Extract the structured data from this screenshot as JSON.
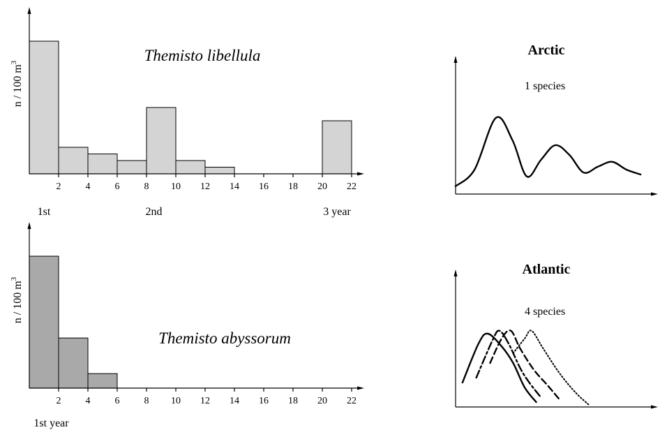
{
  "chart_data": [
    {
      "type": "bar",
      "title": "Themisto libellula",
      "ylabel": "n / 100 m",
      "ylabel_sup": "3",
      "x_ticks": [
        "2",
        "4",
        "6",
        "8",
        "10",
        "12",
        "14",
        "16",
        "18",
        "20",
        "22"
      ],
      "bins": [
        {
          "start": 0,
          "end": 2,
          "value": 100
        },
        {
          "start": 2,
          "end": 4,
          "value": 20
        },
        {
          "start": 4,
          "end": 6,
          "value": 15
        },
        {
          "start": 6,
          "end": 8,
          "value": 10
        },
        {
          "start": 8,
          "end": 10,
          "value": 50
        },
        {
          "start": 10,
          "end": 12,
          "value": 10
        },
        {
          "start": 12,
          "end": 14,
          "value": 5
        },
        {
          "start": 20,
          "end": 22,
          "value": 40
        }
      ],
      "xlim": [
        0,
        23
      ],
      "ylim": [
        0,
        125
      ],
      "age_labels": [
        {
          "text": "1st",
          "x": 1
        },
        {
          "text": "2nd",
          "x": 8.5
        },
        {
          "text": "3 year",
          "x": 21
        }
      ],
      "bar_color": "#d4d4d4"
    },
    {
      "type": "bar",
      "title": "Themisto abyssorum",
      "ylabel": "n / 100 m",
      "ylabel_sup": "3",
      "x_ticks": [
        "2",
        "4",
        "6",
        "8",
        "10",
        "12",
        "14",
        "16",
        "18",
        "20",
        "22"
      ],
      "bins": [
        {
          "start": 0,
          "end": 2,
          "value": 100
        },
        {
          "start": 2,
          "end": 4,
          "value": 38
        },
        {
          "start": 4,
          "end": 6,
          "value": 11
        }
      ],
      "xlim": [
        0,
        23
      ],
      "ylim": [
        0,
        125
      ],
      "age_labels": [
        {
          "text": "1st year",
          "x": 1.5
        }
      ],
      "bar_color": "#a9a9a9"
    },
    {
      "type": "line",
      "title": "Arctic",
      "annotation": "1 species",
      "series": [
        {
          "style": "solid",
          "points": [
            [
              0,
              8
            ],
            [
              8,
              25
            ],
            [
              17,
              78
            ],
            [
              24,
              55
            ],
            [
              30,
              18
            ],
            [
              36,
              35
            ],
            [
              42,
              50
            ],
            [
              48,
              40
            ],
            [
              54,
              22
            ],
            [
              60,
              28
            ],
            [
              66,
              33
            ],
            [
              72,
              25
            ],
            [
              78,
              20
            ]
          ]
        }
      ],
      "xlim": [
        0,
        84
      ],
      "ylim": [
        0,
        120
      ]
    },
    {
      "type": "line",
      "title": "Atlantic",
      "annotation": "4 species",
      "series": [
        {
          "style": "solid",
          "points": [
            [
              3,
              25
            ],
            [
              10,
              65
            ],
            [
              14,
              75
            ],
            [
              20,
              62
            ],
            [
              25,
              45
            ],
            [
              30,
              20
            ],
            [
              35,
              5
            ]
          ]
        },
        {
          "style": "dashdot",
          "points": [
            [
              9,
              30
            ],
            [
              16,
              68
            ],
            [
              19,
              78
            ],
            [
              23,
              65
            ],
            [
              28,
              40
            ],
            [
              32,
              25
            ],
            [
              37,
              10
            ]
          ]
        },
        {
          "style": "dashed",
          "points": [
            [
              15,
              45
            ],
            [
              20,
              70
            ],
            [
              24,
              78
            ],
            [
              28,
              60
            ],
            [
              34,
              38
            ],
            [
              40,
              22
            ],
            [
              45,
              8
            ]
          ]
        },
        {
          "style": "dotted",
          "points": [
            [
              25,
              55
            ],
            [
              30,
              70
            ],
            [
              33,
              78
            ],
            [
              38,
              60
            ],
            [
              45,
              35
            ],
            [
              52,
              15
            ],
            [
              58,
              2
            ]
          ]
        }
      ],
      "xlim": [
        0,
        88
      ],
      "ylim": [
        0,
        130
      ]
    }
  ]
}
